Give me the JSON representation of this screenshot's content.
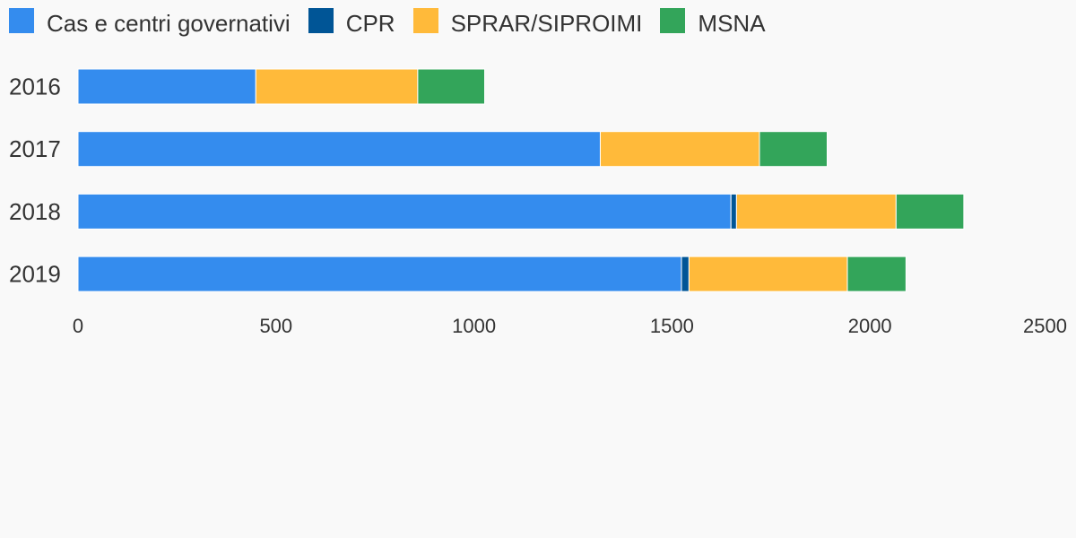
{
  "chart_data": {
    "type": "bar",
    "orientation": "horizontal",
    "stacked": true,
    "categories": [
      "2016",
      "2017",
      "2018",
      "2019"
    ],
    "series": [
      {
        "name": "Cas e centri governativi",
        "color": "#348cee",
        "values": [
          449,
          1319,
          1649,
          1524
        ]
      },
      {
        "name": "CPR",
        "color": "#005596",
        "values": [
          0,
          0,
          14,
          19
        ]
      },
      {
        "name": "SPRAR/SIPROIMI",
        "color": "#ffba3a",
        "values": [
          409,
          402,
          403,
          400
        ]
      },
      {
        "name": "MSNA",
        "color": "#33a55a",
        "values": [
          169,
          171,
          171,
          148
        ]
      }
    ],
    "xlim": [
      0,
      2500
    ],
    "xticks": [
      "0",
      "500",
      "1000",
      "1500",
      "2000",
      "2500"
    ],
    "legend_position": "top-left",
    "grid": false,
    "title": "",
    "xlabel": "",
    "ylabel": ""
  }
}
